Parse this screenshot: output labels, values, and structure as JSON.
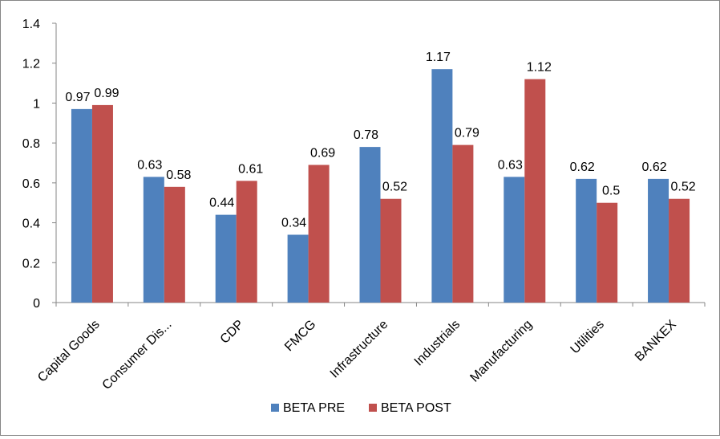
{
  "chart_data": {
    "type": "bar",
    "title": "",
    "xlabel": "",
    "ylabel": "",
    "categories": [
      "Capital Goods",
      "Consumer Dis...",
      "CDP",
      "FMCG",
      "Infrastructure",
      "Industrials",
      "Manufacturing",
      "Utilities",
      "BANKEX"
    ],
    "series": [
      {
        "name": "BETA PRE",
        "color": "#4f81bd",
        "values": [
          0.97,
          0.63,
          0.44,
          0.34,
          0.78,
          1.17,
          0.63,
          0.62,
          0.62
        ]
      },
      {
        "name": "BETA POST",
        "color": "#c0504d",
        "values": [
          0.99,
          0.58,
          0.61,
          0.69,
          0.52,
          0.79,
          1.12,
          0.5,
          0.52
        ]
      }
    ],
    "data_labels": [
      [
        "0.97",
        "0.63",
        "0.44",
        "0.34",
        "0.78",
        "1.17",
        "0.63",
        "0.62",
        "0.62"
      ],
      [
        "0.99",
        "0.58",
        "0.61",
        "0.69",
        "0.52",
        "0.79",
        "1.12",
        "0.5",
        "0.52"
      ]
    ],
    "ylim": [
      0,
      1.4
    ],
    "yticks": [
      "0",
      "0.2",
      "0.4",
      "0.6",
      "0.8",
      "1",
      "1.2",
      "1.4"
    ],
    "grid": false,
    "legend_position": "bottom"
  }
}
